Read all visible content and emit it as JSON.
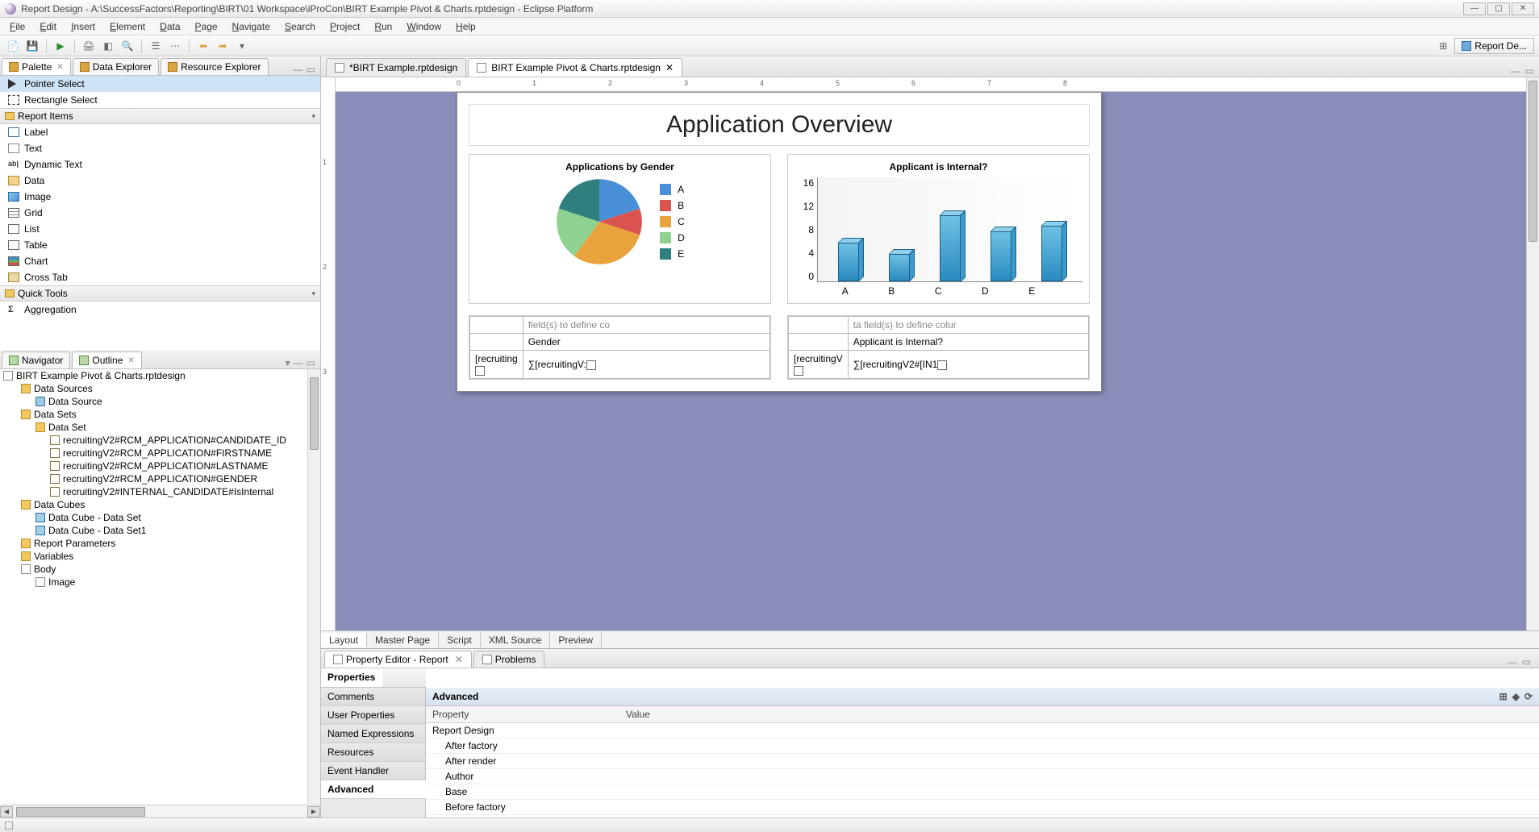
{
  "window": {
    "title": "Report Design - A:\\SuccessFactors\\Reporting\\BIRT\\01 Workspace\\iProCon\\BIRT Example Pivot & Charts.rptdesign - Eclipse Platform"
  },
  "menu": {
    "items": [
      "File",
      "Edit",
      "Insert",
      "Element",
      "Data",
      "Page",
      "Navigate",
      "Search",
      "Project",
      "Run",
      "Window",
      "Help"
    ]
  },
  "perspective": {
    "label": "Report De..."
  },
  "left_top_tabs": {
    "tabs": [
      {
        "label": "Palette",
        "active": true
      },
      {
        "label": "Data Explorer",
        "active": false
      },
      {
        "label": "Resource Explorer",
        "active": false
      }
    ]
  },
  "palette": {
    "pointer": "Pointer Select",
    "rectangle": "Rectangle Select",
    "section_report_items": "Report Items",
    "items": [
      {
        "label": "Label",
        "icon": "pi-label"
      },
      {
        "label": "Text",
        "icon": "pi-text"
      },
      {
        "label": "Dynamic Text",
        "icon": "pi-dyn",
        "icon_text": "ab|"
      },
      {
        "label": "Data",
        "icon": "pi-data"
      },
      {
        "label": "Image",
        "icon": "pi-image"
      },
      {
        "label": "Grid",
        "icon": "pi-grid"
      },
      {
        "label": "List",
        "icon": "pi-list"
      },
      {
        "label": "Table",
        "icon": "pi-table"
      },
      {
        "label": "Chart",
        "icon": "pi-chart"
      },
      {
        "label": "Cross Tab",
        "icon": "pi-cross"
      }
    ],
    "section_quick_tools": "Quick Tools",
    "aggregation": "Aggregation"
  },
  "left_bottom_tabs": {
    "tabs": [
      {
        "label": "Navigator",
        "active": false
      },
      {
        "label": "Outline",
        "active": true
      }
    ]
  },
  "outline": {
    "root": "BIRT Example Pivot & Charts.rptdesign",
    "nodes": [
      {
        "label": "Data Sources",
        "indent": 1,
        "icon": "ti-folder"
      },
      {
        "label": "Data Source",
        "indent": 2,
        "icon": "ti-db"
      },
      {
        "label": "Data Sets",
        "indent": 1,
        "icon": "ti-folder"
      },
      {
        "label": "Data Set",
        "indent": 2,
        "icon": "ti-folder"
      },
      {
        "label": "recruitingV2#RCM_APPLICATION#CANDIDATE_ID",
        "indent": 3,
        "icon": "ti-col"
      },
      {
        "label": "recruitingV2#RCM_APPLICATION#FIRSTNAME",
        "indent": 3,
        "icon": "ti-col"
      },
      {
        "label": "recruitingV2#RCM_APPLICATION#LASTNAME",
        "indent": 3,
        "icon": "ti-col"
      },
      {
        "label": "recruitingV2#RCM_APPLICATION#GENDER",
        "indent": 3,
        "icon": "ti-col"
      },
      {
        "label": "recruitingV2#INTERNAL_CANDIDATE#IsInternal",
        "indent": 3,
        "icon": "ti-col"
      },
      {
        "label": "Data Cubes",
        "indent": 1,
        "icon": "ti-folder"
      },
      {
        "label": "Data Cube - Data Set",
        "indent": 2,
        "icon": "ti-cube"
      },
      {
        "label": "Data Cube - Data Set1",
        "indent": 2,
        "icon": "ti-cube"
      },
      {
        "label": "Report Parameters",
        "indent": 1,
        "icon": "ti-folder"
      },
      {
        "label": "Variables",
        "indent": 1,
        "icon": "ti-folder"
      },
      {
        "label": "Body",
        "indent": 1,
        "icon": "ti-file"
      },
      {
        "label": "Image",
        "indent": 2,
        "icon": "ti-file"
      }
    ]
  },
  "editors": {
    "tabs": [
      {
        "label": "*BIRT Example.rptdesign",
        "active": false
      },
      {
        "label": "BIRT Example Pivot & Charts.rptdesign",
        "active": true
      }
    ]
  },
  "ruler_h_marks": [
    "0",
    "1",
    "2",
    "3",
    "4",
    "5",
    "6",
    "7",
    "8"
  ],
  "ruler_v_marks": [
    "1",
    "2",
    "3"
  ],
  "report": {
    "title": "Application Overview",
    "pie": {
      "title": "Applications by Gender",
      "type": "pie",
      "categories": [
        "A",
        "B",
        "C",
        "D",
        "E"
      ],
      "values": [
        20,
        10,
        30,
        20,
        20
      ],
      "colors": [
        "#4a90d9",
        "#d9534f",
        "#e8a33d",
        "#8fd18f",
        "#2f7f7f"
      ]
    },
    "bar": {
      "title": "Applicant is Internal?",
      "type": "bar3d",
      "categories": [
        "A",
        "B",
        "C",
        "D",
        "E"
      ],
      "values": [
        7,
        5,
        12,
        9,
        10
      ],
      "ylim": [
        0,
        16
      ],
      "ytick_step": 4,
      "bar_face": "#45a7d1",
      "bar_top": "#8fd1ec",
      "bar_side": "#2e7fa6",
      "axis_color": "#888888"
    },
    "pivot1": {
      "hint": "field(s) to define co",
      "header": "Gender",
      "cells": [
        "[recruiting",
        "∑[recruitingV:"
      ]
    },
    "pivot2": {
      "hint": "ta field(s) to define colur",
      "header": "Applicant is Internal?",
      "cells": [
        "[recruitingV",
        "∑[recruitingV2#[IN1"
      ]
    }
  },
  "editor_bottom_tabs": [
    "Layout",
    "Master Page",
    "Script",
    "XML Source",
    "Preview"
  ],
  "props_tabs": {
    "tabs": [
      {
        "label": "Property Editor - Report",
        "active": true
      },
      {
        "label": "Problems",
        "active": false
      }
    ]
  },
  "props_left_tabs": {
    "top": "Properties",
    "items": [
      "Comments",
      "User Properties",
      "Named Expressions",
      "Resources",
      "Event Handler"
    ],
    "active": "Advanced"
  },
  "props_table": {
    "label_heading": "Advanced",
    "header": [
      "Property",
      "Value"
    ],
    "rows": [
      {
        "label": "Report Design",
        "indent": 0
      },
      {
        "label": "After factory",
        "indent": 1
      },
      {
        "label": "After render",
        "indent": 1
      },
      {
        "label": "Author",
        "indent": 1
      },
      {
        "label": "Base",
        "indent": 1
      },
      {
        "label": "Before factory",
        "indent": 1
      }
    ]
  }
}
